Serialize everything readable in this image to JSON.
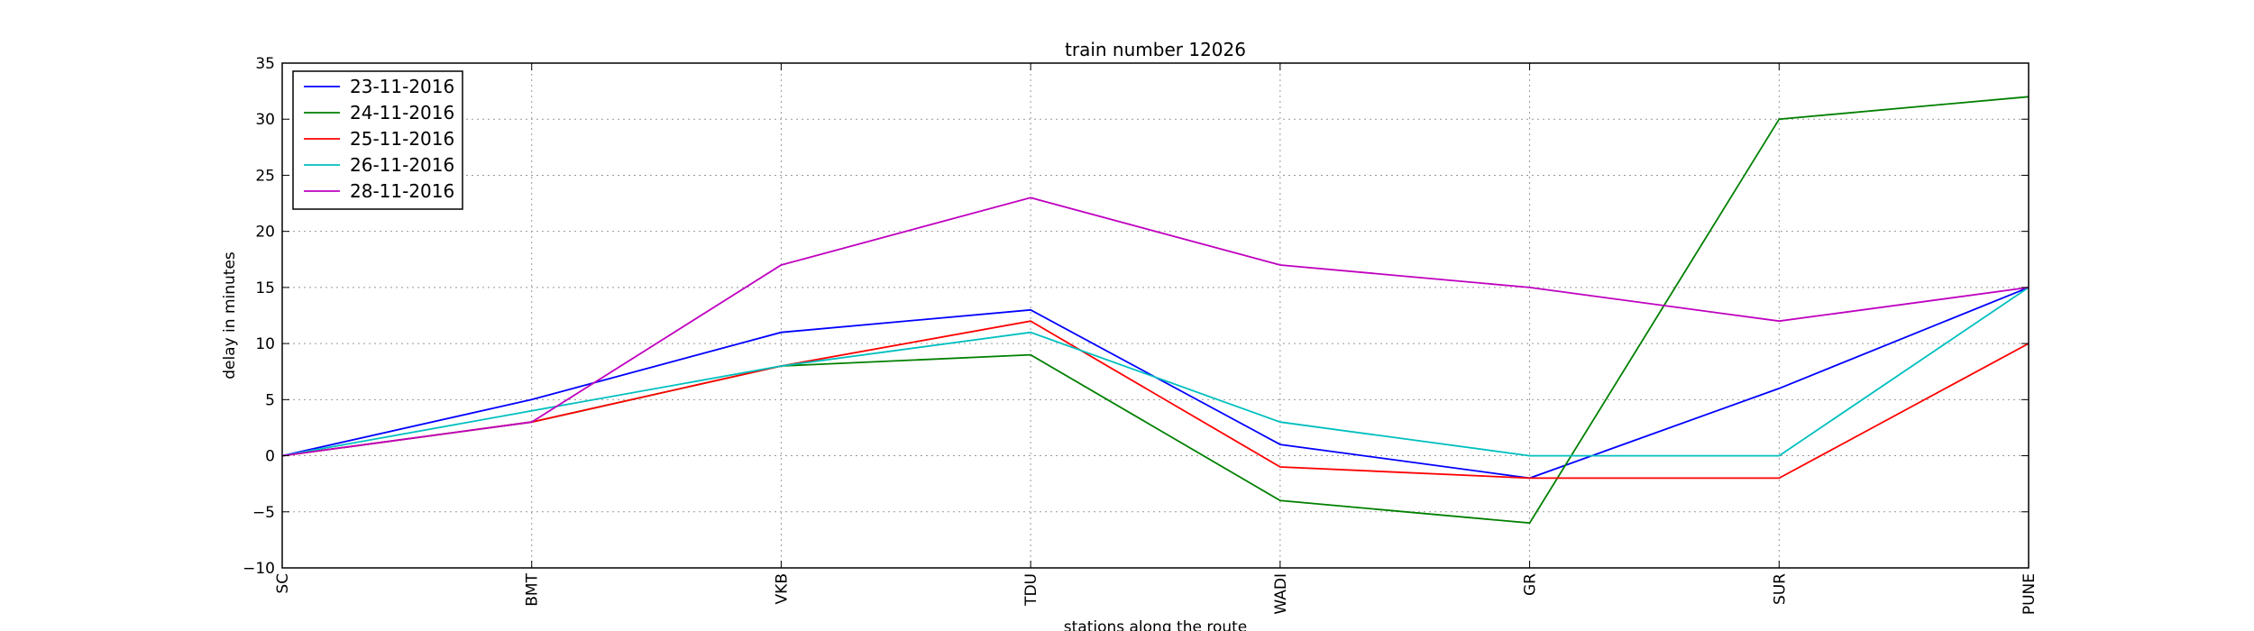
{
  "chart_data": {
    "type": "line",
    "title": "train number 12026",
    "xlabel": "stations along the route",
    "ylabel": "delay in minutes",
    "categories": [
      "SC",
      "BMT",
      "VKB",
      "TDU",
      "WADI",
      "GR",
      "SUR",
      "PUNE"
    ],
    "ylim": [
      -10,
      35
    ],
    "yticks": [
      -10,
      -5,
      0,
      5,
      10,
      15,
      20,
      25,
      30,
      35
    ],
    "grid": true,
    "legend_position": "top-left",
    "series": [
      {
        "name": "23-11-2016",
        "color": "#0000ff",
        "values": [
          0,
          5,
          11,
          13,
          1,
          -2,
          6,
          15
        ]
      },
      {
        "name": "24-11-2016",
        "color": "#008000",
        "values": [
          0,
          3,
          8,
          9,
          -4,
          -6,
          30,
          32
        ]
      },
      {
        "name": "25-11-2016",
        "color": "#ff0000",
        "values": [
          0,
          3,
          8,
          12,
          -1,
          -2,
          -2,
          10
        ]
      },
      {
        "name": "26-11-2016",
        "color": "#00bfbf",
        "values": [
          0,
          4,
          8,
          11,
          3,
          0,
          0,
          15
        ]
      },
      {
        "name": "28-11-2016",
        "color": "#bf00bf",
        "values": [
          0,
          3,
          17,
          23,
          17,
          15,
          12,
          15
        ]
      }
    ]
  }
}
